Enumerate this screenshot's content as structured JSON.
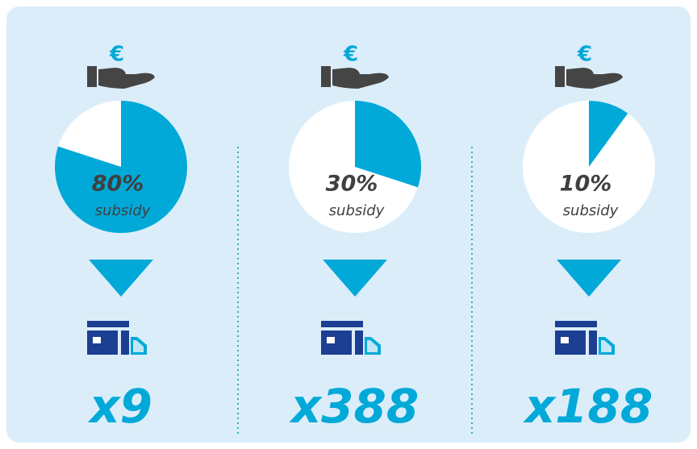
{
  "chart_data": [
    {
      "type": "pie",
      "currency_symbol": "€",
      "values": [
        80
      ],
      "value_labels": [
        "80%"
      ],
      "caption": "subsidy",
      "multiplier": "x9",
      "color": "#00a9d8"
    },
    {
      "type": "pie",
      "currency_symbol": "€",
      "values": [
        30
      ],
      "value_labels": [
        "30%"
      ],
      "caption": "subsidy",
      "multiplier": "x388",
      "color": "#00a9d8"
    },
    {
      "type": "pie",
      "currency_symbol": "€",
      "values": [
        10
      ],
      "value_labels": [
        "10%"
      ],
      "caption": "subsidy",
      "multiplier": "x188",
      "color": "#00a9d8"
    }
  ]
}
